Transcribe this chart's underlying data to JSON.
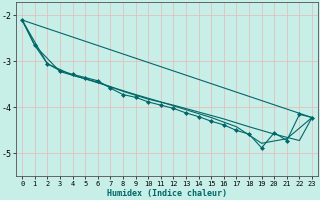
{
  "xlabel": "Humidex (Indice chaleur)",
  "bg_color": "#c8eee8",
  "grid_color": "#e8b8b8",
  "line_color": "#006868",
  "xlim": [
    -0.5,
    23.5
  ],
  "ylim": [
    -5.5,
    -1.7
  ],
  "yticks": [
    -5,
    -4,
    -3,
    -2
  ],
  "xticks": [
    0,
    1,
    2,
    3,
    4,
    5,
    6,
    7,
    8,
    9,
    10,
    11,
    12,
    13,
    14,
    15,
    16,
    17,
    18,
    19,
    20,
    21,
    22,
    23
  ],
  "series_main": [
    [
      0,
      -2.1
    ],
    [
      1,
      -2.65
    ],
    [
      2,
      -3.05
    ],
    [
      3,
      -3.2
    ],
    [
      4,
      -3.28
    ],
    [
      5,
      -3.35
    ],
    [
      6,
      -3.42
    ],
    [
      7,
      -3.58
    ],
    [
      8,
      -3.72
    ],
    [
      9,
      -3.78
    ],
    [
      10,
      -3.88
    ],
    [
      11,
      -3.95
    ],
    [
      12,
      -4.02
    ],
    [
      13,
      -4.12
    ],
    [
      14,
      -4.2
    ],
    [
      15,
      -4.3
    ],
    [
      16,
      -4.38
    ],
    [
      17,
      -4.5
    ],
    [
      18,
      -4.58
    ],
    [
      19,
      -4.88
    ],
    [
      20,
      -4.55
    ],
    [
      21,
      -4.72
    ],
    [
      22,
      -4.15
    ],
    [
      23,
      -4.22
    ]
  ],
  "series_straight": [
    [
      0,
      -2.1
    ],
    [
      23,
      -4.22
    ]
  ],
  "series_smooth1": [
    [
      0,
      -2.1
    ],
    [
      2,
      -3.05
    ],
    [
      4,
      -3.3
    ],
    [
      6,
      -3.45
    ],
    [
      8,
      -3.65
    ],
    [
      10,
      -3.82
    ],
    [
      12,
      -3.95
    ],
    [
      14,
      -4.1
    ],
    [
      16,
      -4.25
    ],
    [
      18,
      -4.42
    ],
    [
      20,
      -4.58
    ],
    [
      22,
      -4.72
    ],
    [
      23,
      -4.22
    ]
  ],
  "series_smooth2": [
    [
      0,
      -2.1
    ],
    [
      1,
      -2.65
    ],
    [
      3,
      -3.22
    ],
    [
      5,
      -3.38
    ],
    [
      7,
      -3.55
    ],
    [
      9,
      -3.72
    ],
    [
      11,
      -3.88
    ],
    [
      13,
      -4.05
    ],
    [
      15,
      -4.22
    ],
    [
      17,
      -4.42
    ],
    [
      19,
      -4.78
    ],
    [
      21,
      -4.68
    ],
    [
      23,
      -4.22
    ]
  ]
}
